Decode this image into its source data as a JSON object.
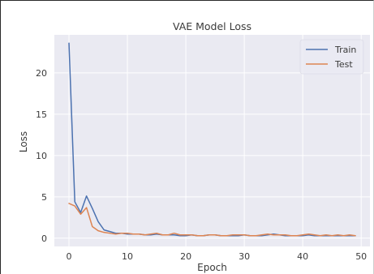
{
  "chart_data": {
    "type": "line",
    "title": "VAE Model Loss",
    "xlabel": "Epoch",
    "ylabel": "Loss",
    "xlim": [
      -2.5,
      51.5
    ],
    "ylim": [
      -1.0,
      24.6
    ],
    "xticks": [
      0,
      10,
      20,
      30,
      40,
      50
    ],
    "yticks": [
      0,
      5,
      10,
      15,
      20
    ],
    "grid": true,
    "legend_position": "top-right",
    "x": [
      0,
      1,
      2,
      3,
      4,
      5,
      6,
      7,
      8,
      9,
      10,
      11,
      12,
      13,
      14,
      15,
      16,
      17,
      18,
      19,
      20,
      21,
      22,
      23,
      24,
      25,
      26,
      27,
      28,
      29,
      30,
      31,
      32,
      33,
      34,
      35,
      36,
      37,
      38,
      39,
      40,
      41,
      42,
      43,
      44,
      45,
      46,
      47,
      48,
      49
    ],
    "series": [
      {
        "name": "Train",
        "color": "#4c72b0",
        "values": [
          23.6,
          4.4,
          3.1,
          5.1,
          3.6,
          2.0,
          1.0,
          0.8,
          0.6,
          0.6,
          0.5,
          0.5,
          0.5,
          0.4,
          0.4,
          0.5,
          0.4,
          0.4,
          0.4,
          0.3,
          0.3,
          0.4,
          0.3,
          0.3,
          0.4,
          0.4,
          0.3,
          0.3,
          0.3,
          0.3,
          0.4,
          0.3,
          0.3,
          0.3,
          0.4,
          0.5,
          0.4,
          0.3,
          0.3,
          0.3,
          0.3,
          0.4,
          0.3,
          0.3,
          0.3,
          0.3,
          0.3,
          0.3,
          0.3,
          0.3
        ]
      },
      {
        "name": "Test",
        "color": "#dd8452",
        "values": [
          4.2,
          3.9,
          2.9,
          3.7,
          1.4,
          0.9,
          0.7,
          0.6,
          0.5,
          0.6,
          0.6,
          0.5,
          0.5,
          0.4,
          0.5,
          0.6,
          0.4,
          0.4,
          0.6,
          0.4,
          0.4,
          0.4,
          0.3,
          0.3,
          0.4,
          0.4,
          0.3,
          0.3,
          0.4,
          0.4,
          0.4,
          0.3,
          0.3,
          0.4,
          0.5,
          0.4,
          0.4,
          0.4,
          0.3,
          0.3,
          0.4,
          0.5,
          0.4,
          0.3,
          0.4,
          0.3,
          0.4,
          0.3,
          0.4,
          0.3
        ]
      }
    ]
  }
}
